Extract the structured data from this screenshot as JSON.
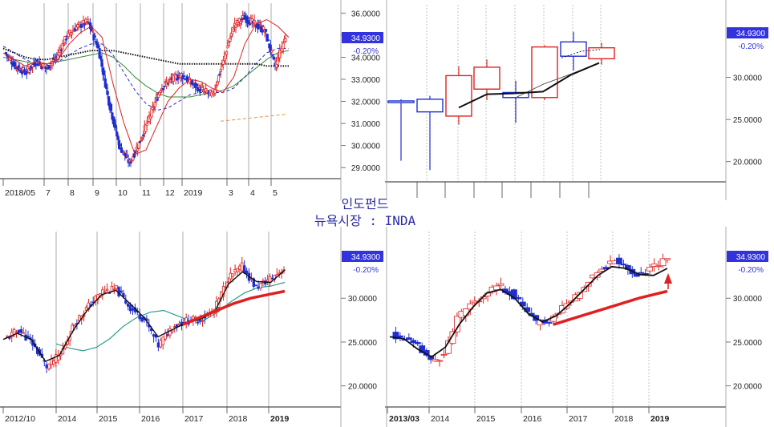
{
  "center_title": {
    "line1": "인도펀드",
    "line2": "뉴욕시장 : INDA"
  },
  "colors": {
    "up": "#e02020",
    "down": "#1f2fcf",
    "price_box": "#3333dd"
  },
  "chart_data": [
    {
      "id": "daily",
      "type": "candlestick",
      "ylim": [
        28.5,
        36.3
      ],
      "y_ticks": [
        "36.0000",
        "35.0000",
        "34.0000",
        "33.0000",
        "32.0000",
        "31.0000",
        "30.0000",
        "29.0000"
      ],
      "x_tick_labels": [
        "2018/05",
        "7",
        "8",
        "9",
        "10",
        "11",
        "12",
        "2019",
        "3",
        "4",
        "5"
      ],
      "last_price": "34.9300",
      "change": "-0.20%",
      "series": [
        {
          "name": "",
          "color": "#e02020",
          "values": [
            34.2,
            33.9,
            33.6,
            33.8,
            33.7,
            33.9,
            34.6,
            35.1,
            35.4,
            34.9,
            32.8,
            31.0,
            29.6,
            29.8,
            30.9,
            32.0,
            32.6,
            33.0,
            32.9,
            32.6,
            32.4,
            33.1,
            34.6,
            35.5,
            35.7,
            35.4,
            34.9
          ]
        },
        {
          "name": "",
          "color": "#1f2fcf",
          "values": [
            34.5,
            34.2,
            33.9,
            33.7,
            33.7,
            33.8,
            34.1,
            34.4,
            34.6,
            34.6,
            34.1,
            33.3,
            32.5,
            31.9,
            31.6,
            31.7,
            32.0,
            32.3,
            32.4,
            32.4,
            32.4,
            32.6,
            33.1,
            33.7,
            34.2,
            34.4,
            34.4
          ]
        },
        {
          "name": "",
          "color": "#3a8a3a",
          "values": [
            34.0,
            33.9,
            33.8,
            33.7,
            33.7,
            33.8,
            33.9,
            34.0,
            34.1,
            34.2,
            34.0,
            33.6,
            33.1,
            32.7,
            32.4,
            32.2,
            32.2,
            32.2,
            32.3,
            32.4,
            32.5,
            32.7,
            33.1,
            33.5,
            33.9,
            34.2,
            34.3
          ]
        },
        {
          "name": "",
          "color": "#111111",
          "values": [
            34.4,
            34.2,
            34.0,
            33.9,
            33.9,
            34.0,
            34.1,
            34.2,
            34.3,
            34.3,
            34.3,
            34.2,
            34.1,
            34.0,
            33.9,
            33.8,
            33.7,
            33.7,
            33.7,
            33.7,
            33.7,
            33.7,
            33.7,
            33.7,
            33.6,
            33.6,
            33.6
          ]
        },
        {
          "name": "",
          "color": "#f08a40",
          "values": [
            31.1,
            31.18,
            31.26,
            31.34,
            31.42
          ]
        }
      ],
      "close": [
        34.2,
        33.6,
        33.3,
        33.8,
        33.5,
        34.0,
        35.0,
        35.4,
        35.6,
        34.4,
        32.0,
        30.0,
        29.2,
        30.2,
        31.4,
        32.6,
        33.0,
        33.2,
        32.8,
        32.5,
        32.3,
        33.8,
        35.4,
        35.8,
        35.5,
        35.2,
        33.6,
        34.93
      ],
      "trend": [
        31.1,
        31.42
      ]
    },
    {
      "id": "quarterly",
      "type": "candlestick",
      "ylim": [
        17.6,
        38.6
      ],
      "y_ticks": [
        "30.0000",
        "25.0000",
        "20.0000"
      ],
      "last_price": "34.9300",
      "change": "-0.20%",
      "candles": [
        {
          "o": 27.2,
          "h": 27.4,
          "l": 20.1,
          "c": 27.0
        },
        {
          "o": 27.4,
          "h": 27.8,
          "l": 19.0,
          "c": 25.9
        },
        {
          "o": 25.4,
          "h": 31.3,
          "l": 24.4,
          "c": 30.2
        },
        {
          "o": 28.6,
          "h": 32.1,
          "l": 27.3,
          "c": 31.2
        },
        {
          "o": 28.2,
          "h": 29.6,
          "l": 24.6,
          "c": 27.6
        },
        {
          "o": 27.6,
          "h": 33.8,
          "l": 27.3,
          "c": 33.6
        },
        {
          "o": 34.2,
          "h": 35.4,
          "l": 30.8,
          "c": 32.5
        },
        {
          "o": 32.2,
          "h": 34.1,
          "l": 31.5,
          "c": 33.5
        }
      ],
      "series": [
        {
          "name": "",
          "color": "#111111",
          "values": [
            26.4,
            28.0,
            28.1,
            28.3,
            30.3,
            31.7
          ]
        },
        {
          "name": "",
          "color": "#555555",
          "values": [
            27.6,
            29.2,
            30.4,
            31.7
          ]
        }
      ]
    },
    {
      "id": "weekly",
      "type": "candlestick",
      "ylim": [
        17.6,
        37.6
      ],
      "y_ticks": [
        "30.0000",
        "25.0000",
        "20.0000"
      ],
      "x_tick_labels": [
        "2012/10",
        "2014",
        "2015",
        "2016",
        "2017",
        "2018",
        "2019"
      ],
      "last_price": "34.9300",
      "change": "-0.20%",
      "close": [
        25.3,
        26.4,
        24.8,
        22.2,
        23.6,
        27.2,
        29.1,
        30.8,
        31.0,
        28.9,
        27.6,
        24.6,
        26.8,
        27.4,
        27.6,
        28.6,
        32.3,
        33.6,
        31.2,
        32.2,
        33.4
      ],
      "series": [
        {
          "name": "",
          "color": "#111111",
          "values": [
            25.3,
            26.0,
            25.3,
            22.8,
            23.5,
            26.4,
            28.7,
            30.4,
            30.9,
            29.4,
            27.8,
            25.6,
            26.4,
            27.2,
            27.6,
            28.4,
            31.6,
            33.0,
            31.9,
            31.8,
            33.2
          ]
        },
        {
          "name": "",
          "color": "#2f9a8a",
          "values": [
            24.8,
            24.3,
            24.0,
            24.4,
            25.4,
            26.8,
            27.8,
            28.4,
            28.6,
            28.0,
            27.4,
            27.5,
            28.4,
            29.6,
            30.6,
            31.2,
            31.4,
            31.8
          ]
        },
        {
          "name": "",
          "color": "#e02020",
          "values": [
            27.0,
            27.8,
            28.6,
            29.4,
            30.0,
            30.4,
            30.8
          ]
        }
      ]
    },
    {
      "id": "monthly",
      "type": "candlestick",
      "ylim": [
        17.6,
        37.6
      ],
      "y_ticks": [
        "30.0000",
        "25.0000",
        "20.0000"
      ],
      "x_tick_labels": [
        "2013/03",
        "2014",
        "2015",
        "2016",
        "2017",
        "2018",
        "2019"
      ],
      "last_price": "34.9300",
      "change": "-0.20%",
      "close": [
        25.9,
        25.3,
        24.4,
        22.8,
        23.6,
        27.6,
        29.3,
        30.4,
        31.4,
        30.8,
        29.0,
        27.2,
        27.4,
        29.0,
        30.2,
        32.2,
        33.4,
        34.4,
        33.2,
        32.6,
        33.8,
        34.3
      ],
      "series": [
        {
          "name": "",
          "color": "#111111",
          "values": [
            25.6,
            25.4,
            24.2,
            23.3,
            24.4,
            27.0,
            29.0,
            30.6,
            31.0,
            30.0,
            28.2,
            27.3,
            28.0,
            29.4,
            31.0,
            32.6,
            33.6,
            33.4,
            32.7,
            32.6,
            33.4
          ]
        },
        {
          "name": "",
          "color": "#e02020",
          "values": [
            27.0,
            28.0,
            29.0,
            30.0,
            30.8
          ]
        }
      ]
    }
  ]
}
